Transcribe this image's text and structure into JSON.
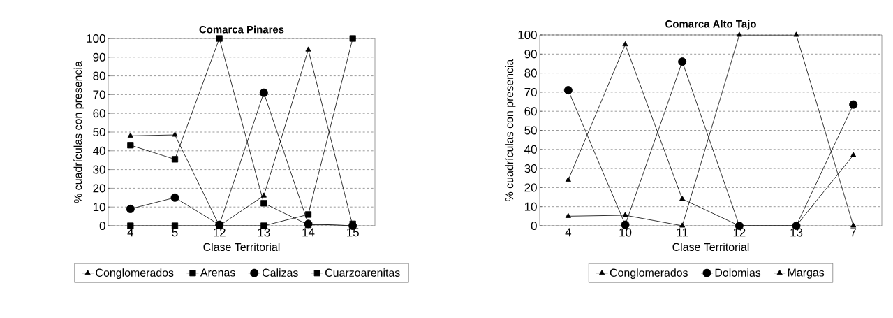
{
  "chart_data": [
    {
      "type": "line",
      "title": "Comarca Pinares",
      "xlabel": "Clase Territorial",
      "ylabel": "% cuadrículas con presencia",
      "categories": [
        "4",
        "5",
        "12",
        "13",
        "14",
        "15"
      ],
      "series": [
        {
          "name": "Conglomerados",
          "color": "#000000",
          "marker": "triangle",
          "values": [
            48,
            48.5,
            0,
            16,
            94,
            0
          ]
        },
        {
          "name": "Arenas",
          "color": "#000000",
          "marker": "square",
          "values": [
            0,
            0,
            0,
            0,
            6,
            100
          ]
        },
        {
          "name": "Calizas",
          "color": "#000000",
          "marker": "circle",
          "values": [
            9,
            15,
            0.5,
            71,
            1,
            0
          ]
        },
        {
          "name": "Cuarzoarenitas",
          "color": "#000000",
          "marker": "square",
          "values": [
            43,
            35.5,
            100,
            12,
            0.5,
            1
          ]
        }
      ],
      "ylim": [
        0,
        100
      ],
      "yticks": [
        0,
        10,
        20,
        30,
        40,
        50,
        60,
        70,
        80,
        90,
        100
      ],
      "grid": "y",
      "legend": "bottom",
      "line_style": "solid"
    },
    {
      "type": "line",
      "title": "Comarca Alto Tajo",
      "xlabel": "Clase Territorial",
      "ylabel": "% cuadrículas con presencia",
      "categories": [
        "4",
        "10",
        "11",
        "12",
        "13",
        "7"
      ],
      "series": [
        {
          "name": "Conglomerados",
          "color": "#000000",
          "marker": "triangle",
          "values": [
            5,
            5.5,
            0,
            100,
            100,
            0
          ]
        },
        {
          "name": "Dolomias",
          "color": "#000000",
          "marker": "circle",
          "values": [
            71,
            0.5,
            86,
            0,
            0,
            63.5
          ]
        },
        {
          "name": "Margas",
          "color": "#000000",
          "marker": "triangle",
          "values": [
            24,
            95,
            14,
            0,
            0,
            37
          ]
        }
      ],
      "ylim": [
        0,
        100
      ],
      "yticks": [
        0,
        10,
        20,
        30,
        40,
        50,
        60,
        70,
        80,
        90,
        100
      ],
      "grid": "y",
      "legend": "bottom",
      "line_style": "solid"
    }
  ]
}
